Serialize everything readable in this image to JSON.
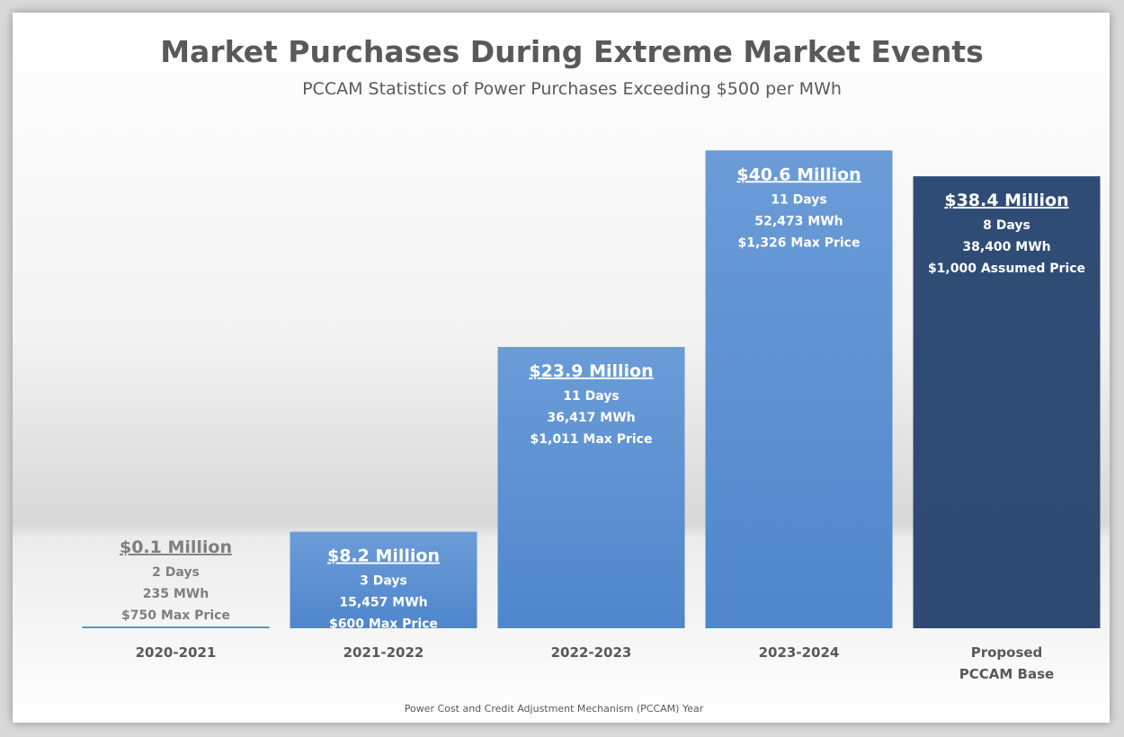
{
  "chart_data": {
    "type": "bar",
    "title": "Market Purchases During Extreme Market Events",
    "subtitle": "PCCAM Statistics of Power Purchases Exceeding $500 per MWh",
    "xlabel": "Power Cost and Credit Adjustment Mechanism (PCCAM) Year",
    "ylabel": "",
    "ylim": [
      0,
      42
    ],
    "grid": false,
    "categories": [
      [
        "2020-2021"
      ],
      [
        "2021-2022"
      ],
      [
        "2022-2023"
      ],
      [
        "2023-2024"
      ],
      [
        "Proposed",
        "PCCAM Base"
      ]
    ],
    "values": [
      0.1,
      8.2,
      23.9,
      40.6,
      38.4
    ],
    "data_labels": [
      {
        "amount": "$0.1 Million",
        "lines": [
          "2 Days",
          "235 MWh",
          "$750 Max Price"
        ]
      },
      {
        "amount": "$8.2 Million",
        "lines": [
          "3 Days",
          "15,457 MWh",
          "$600 Max Price"
        ]
      },
      {
        "amount": "$23.9 Million",
        "lines": [
          "11 Days",
          "36,417 MWh",
          "$1,011 Max Price"
        ]
      },
      {
        "amount": "$40.6 Million",
        "lines": [
          "11 Days",
          "52,473 MWh",
          "$1,326 Max Price"
        ]
      },
      {
        "amount": "$38.4 Million",
        "lines": [
          "8 Days",
          "38,400 MWh",
          "$1,000 Assumed Price"
        ]
      }
    ],
    "colors": {
      "bar": "#5b8fd0",
      "highlight": "#2f4d78",
      "bar_text": "#ffffff",
      "outside_text": "#7f7f7f"
    }
  }
}
